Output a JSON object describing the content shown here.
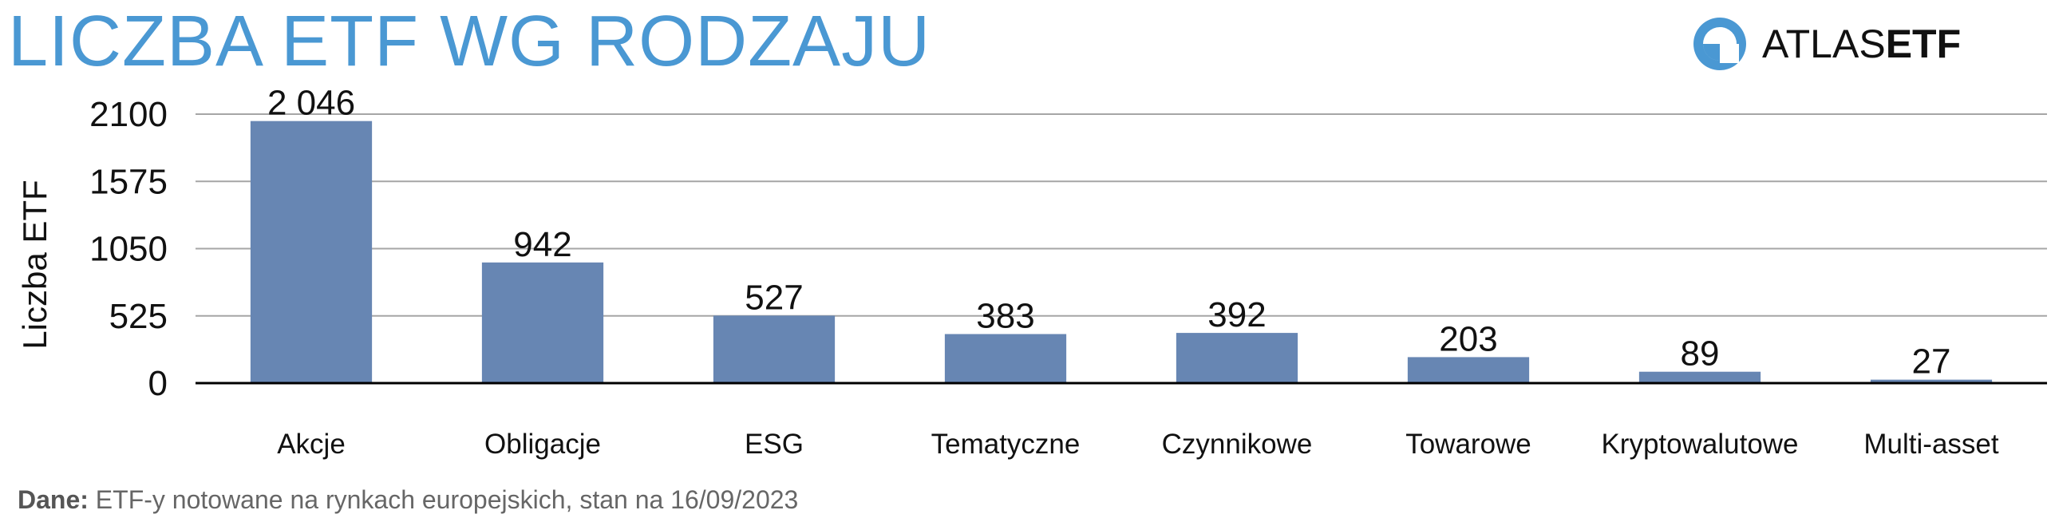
{
  "title": "LICZBA ETF WG RODZAJU",
  "logo": {
    "text_light": "ATLAS",
    "text_bold": "ETF",
    "icon": "atlas-circle-icon"
  },
  "footnote": {
    "lead": "Dane:",
    "text": "ETF-y notowane na rynkach europejskich, stan na 16/09/2023"
  },
  "colors": {
    "title": "#4a98d3",
    "bar": "#6786b3",
    "grid": "#a6a6a6",
    "axis": "#000000",
    "logo_blue": "#4a98d3"
  },
  "chart_data": {
    "type": "bar",
    "title": "",
    "xlabel": "",
    "ylabel": "Liczba ETF",
    "ylim": [
      0,
      2100
    ],
    "yticks": [
      0,
      525,
      1050,
      1575,
      2100
    ],
    "ytick_labels": [
      "0",
      "525",
      "1050",
      "1575",
      "2100"
    ],
    "grid": true,
    "categories": [
      "Akcje",
      "Obligacje",
      "ESG",
      "Tematyczne",
      "Czynnikowe",
      "Towarowe",
      "Kryptowalutowe",
      "Multi-asset"
    ],
    "values": [
      2046,
      942,
      527,
      383,
      392,
      203,
      89,
      27
    ],
    "data_labels": [
      "2 046",
      "942",
      "527",
      "383",
      "392",
      "203",
      "89",
      "27"
    ]
  }
}
